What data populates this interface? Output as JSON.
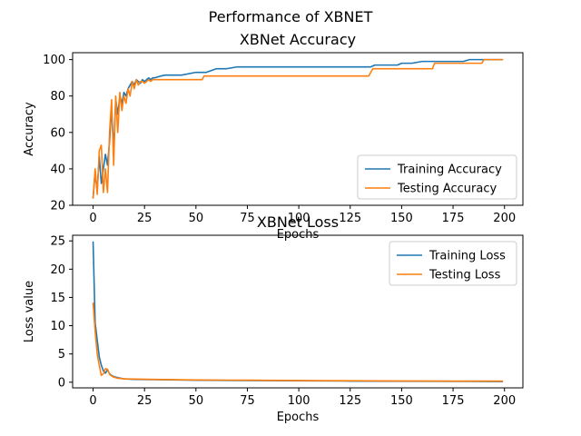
{
  "figure_title": "Performance of XBNET",
  "chart_data": [
    {
      "type": "line",
      "title": "XBNet Accuracy",
      "xlabel": "Epochs",
      "ylabel": "Accuracy",
      "xlim": [
        -9.95,
        208.95
      ],
      "ylim": [
        20,
        103.8
      ],
      "xticks": [
        0,
        25,
        50,
        75,
        100,
        125,
        150,
        175,
        200
      ],
      "yticks": [
        20,
        40,
        60,
        80,
        100
      ],
      "legend_position": "lower-right",
      "grid": false,
      "series": [
        {
          "name": "Training Accuracy",
          "color": "#1f77b4",
          "x": [
            0,
            1,
            2,
            3,
            4,
            5,
            6,
            7,
            8,
            9,
            10,
            11,
            12,
            13,
            14,
            15,
            16,
            17,
            18,
            19,
            20,
            21,
            22,
            23,
            24,
            25,
            26,
            27,
            28,
            29,
            30,
            33,
            35,
            43,
            50,
            51,
            52,
            55,
            60,
            65,
            70,
            80,
            100,
            120,
            125,
            130,
            135,
            137,
            140,
            148,
            150,
            155,
            160,
            170,
            180,
            183,
            185,
            190,
            199
          ],
          "y": [
            24,
            38,
            28,
            47,
            32,
            40,
            48,
            42,
            55,
            74,
            50,
            78,
            70,
            80,
            76,
            82,
            80,
            84,
            86,
            88,
            86,
            89,
            88,
            87,
            89,
            88,
            89,
            90,
            89,
            90,
            90,
            91,
            91.5,
            91.5,
            93,
            93,
            93,
            93,
            95,
            95,
            96,
            96,
            96,
            96,
            96,
            96,
            96,
            97,
            97,
            97,
            98,
            98,
            99,
            99,
            99,
            100,
            100,
            100,
            100
          ]
        },
        {
          "name": "Testing Accuracy",
          "color": "#ff7f0e",
          "x": [
            0,
            1,
            2,
            3,
            4,
            5,
            6,
            7,
            8,
            9,
            10,
            11,
            12,
            13,
            14,
            15,
            16,
            17,
            18,
            19,
            20,
            21,
            22,
            23,
            24,
            25,
            26,
            27,
            28,
            29,
            30,
            40,
            50,
            53,
            54,
            60,
            80,
            100,
            120,
            134,
            135,
            136,
            140,
            150,
            160,
            165,
            166,
            170,
            180,
            189,
            190,
            199
          ],
          "y": [
            24,
            40,
            26,
            50,
            53,
            27,
            40,
            27,
            60,
            78,
            42,
            80,
            60,
            82,
            72,
            80,
            76,
            84,
            80,
            88,
            84,
            89,
            86,
            88,
            88,
            87,
            88,
            89,
            88,
            89,
            89,
            89,
            89,
            89,
            91,
            91,
            91,
            91,
            91,
            91,
            93,
            95,
            95,
            95,
            95,
            95,
            98,
            98,
            98,
            98,
            100,
            100
          ]
        }
      ]
    },
    {
      "type": "line",
      "title": "XBNet Loss",
      "xlabel": "Epochs",
      "ylabel": "Loss value",
      "xlim": [
        -9.95,
        208.95
      ],
      "ylim": [
        -1.0,
        26.0
      ],
      "xticks": [
        0,
        25,
        50,
        75,
        100,
        125,
        150,
        175,
        200
      ],
      "yticks": [
        0,
        5,
        10,
        15,
        20,
        25
      ],
      "legend_position": "upper-right",
      "grid": false,
      "series": [
        {
          "name": "Training Loss",
          "color": "#1f77b4",
          "x": [
            0,
            1,
            2,
            3,
            4,
            5,
            6,
            7,
            8,
            9,
            10,
            12,
            15,
            20,
            30,
            50,
            75,
            100,
            125,
            150,
            175,
            199
          ],
          "y": [
            24.8,
            10.5,
            7.5,
            4.5,
            3.0,
            2.0,
            1.6,
            2.2,
            1.5,
            1.2,
            1.0,
            0.8,
            0.6,
            0.5,
            0.45,
            0.35,
            0.3,
            0.25,
            0.2,
            0.18,
            0.15,
            0.12
          ]
        },
        {
          "name": "Testing Loss",
          "color": "#ff7f0e",
          "x": [
            0,
            1,
            2,
            3,
            4,
            5,
            6,
            7,
            8,
            9,
            10,
            12,
            15,
            20,
            30,
            50,
            75,
            100,
            125,
            150,
            175,
            199
          ],
          "y": [
            14.0,
            9.0,
            5.0,
            3.0,
            1.2,
            1.5,
            2.4,
            2.3,
            1.4,
            1.1,
            0.9,
            0.7,
            0.6,
            0.55,
            0.5,
            0.4,
            0.35,
            0.3,
            0.25,
            0.22,
            0.2,
            0.2
          ]
        }
      ]
    }
  ]
}
